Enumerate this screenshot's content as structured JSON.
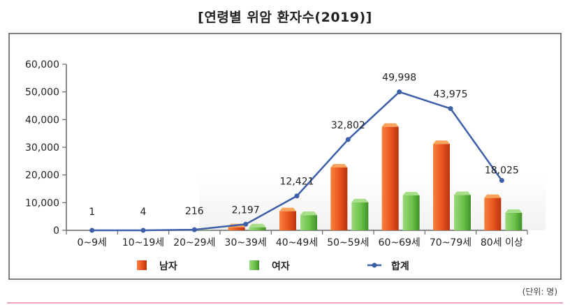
{
  "chart_data": {
    "type": "bar",
    "title": "[연령별 위암 환자수(2019)]",
    "unit_note": "(단위: 명)",
    "categories": [
      "0~9세",
      "10~19세",
      "20~29세",
      "30~39세",
      "40~49세",
      "50~59세",
      "60~69세",
      "70~79세",
      "80세 이상"
    ],
    "series": [
      {
        "name": "남자",
        "type": "bar",
        "color": "#e8531f",
        "values": [
          0,
          2,
          90,
          1100,
          6900,
          22700,
          37400,
          31200,
          11700
        ]
      },
      {
        "name": "여자",
        "type": "bar",
        "color": "#6cc24a",
        "values": [
          1,
          2,
          126,
          1097,
          5500,
          10100,
          12600,
          12775,
          6325
        ]
      },
      {
        "name": "합계",
        "type": "line",
        "color": "#3c5fa8",
        "values": [
          1,
          4,
          216,
          2197,
          12421,
          32802,
          49998,
          43975,
          18025
        ],
        "labels": [
          "1",
          "4",
          "216",
          "2,197",
          "12,421",
          "32,802",
          "49,998",
          "43,975",
          "18,025"
        ]
      }
    ],
    "yticks": [
      "0",
      "10,000",
      "20,000",
      "30,000",
      "40,000",
      "50,000",
      "60,000"
    ],
    "ylim": [
      0,
      60000
    ],
    "xlabel": "",
    "ylabel": "",
    "legend_position": "bottom"
  }
}
